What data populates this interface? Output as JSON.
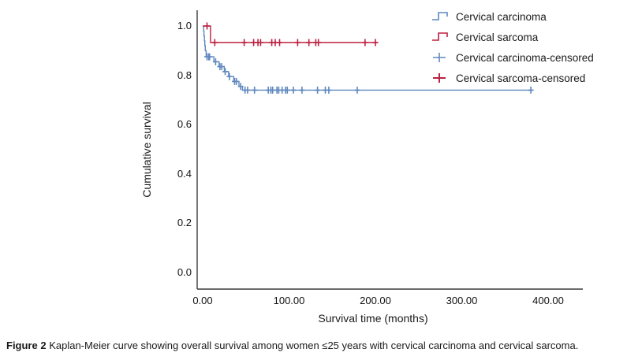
{
  "colors": {
    "carcinoma_blue": "#5f88bf",
    "sarcoma_red": "#bb2140",
    "axis": "#3a3a3a",
    "text": "#1a1a1a"
  },
  "legend": {
    "items": [
      {
        "label": "Cervical carcinoma",
        "marker": "step",
        "color_key": "carcinoma_blue"
      },
      {
        "label": "Cervical sarcoma",
        "marker": "step",
        "color_key": "sarcoma_red"
      },
      {
        "label": "Cervical carcinoma-censored",
        "marker": "plus",
        "color_key": "carcinoma_blue"
      },
      {
        "label": "Cervical sarcoma-censored",
        "marker": "plus",
        "color_key": "sarcoma_red"
      }
    ]
  },
  "caption": {
    "label": "Figure 2",
    "text": "Kaplan-Meier curve showing overall survival among women ≤25 years with cervical carcinoma and cervical sarcoma."
  },
  "chart_data": {
    "type": "line",
    "subtype": "kaplan-meier-step",
    "title": "",
    "xlabel": "Survival time (months)",
    "ylabel": "Cumulative survival",
    "xlim": [
      0,
      400
    ],
    "ylim": [
      0.0,
      1.0
    ],
    "grid": false,
    "legend_position": "top-right",
    "x_ticks": {
      "values": [
        0,
        100,
        200,
        300,
        400
      ],
      "labels": [
        "0.00",
        "100.00",
        "200.00",
        "300.00",
        "400.00"
      ]
    },
    "y_ticks": {
      "values": [
        0.0,
        0.2,
        0.4,
        0.6,
        0.8,
        1.0
      ],
      "labels": [
        "0.0",
        "0.2",
        "0.4",
        "0.6",
        "0.8",
        "1.0"
      ]
    },
    "series": [
      {
        "name": "Cervical carcinoma",
        "color_key": "carcinoma_blue",
        "end_time": 383,
        "steps": [
          [
            0,
            1.0
          ],
          [
            1,
            0.98
          ],
          [
            1.5,
            0.96
          ],
          [
            2,
            0.94
          ],
          [
            2.5,
            0.92
          ],
          [
            3,
            0.9
          ],
          [
            4,
            0.875
          ],
          [
            13,
            0.855
          ],
          [
            19,
            0.835
          ],
          [
            25,
            0.815
          ],
          [
            30,
            0.795
          ],
          [
            36,
            0.775
          ],
          [
            42,
            0.755
          ],
          [
            46,
            0.74
          ]
        ],
        "censored": [
          [
            5,
            0.875
          ],
          [
            7,
            0.875
          ],
          [
            8,
            0.875
          ],
          [
            15,
            0.855
          ],
          [
            20,
            0.835
          ],
          [
            22,
            0.835
          ],
          [
            26,
            0.815
          ],
          [
            31,
            0.795
          ],
          [
            37,
            0.775
          ],
          [
            39,
            0.775
          ],
          [
            44,
            0.755
          ],
          [
            49,
            0.74
          ],
          [
            52,
            0.74
          ],
          [
            60,
            0.74
          ],
          [
            76,
            0.74
          ],
          [
            79,
            0.74
          ],
          [
            81,
            0.74
          ],
          [
            86,
            0.74
          ],
          [
            88,
            0.74
          ],
          [
            92,
            0.74
          ],
          [
            96,
            0.74
          ],
          [
            98,
            0.74
          ],
          [
            105,
            0.74
          ],
          [
            115,
            0.74
          ],
          [
            133,
            0.74
          ],
          [
            142,
            0.74
          ],
          [
            146,
            0.74
          ],
          [
            179,
            0.74
          ],
          [
            380,
            0.74
          ]
        ]
      },
      {
        "name": "Cervical sarcoma",
        "color_key": "sarcoma_red",
        "end_time": 203,
        "steps": [
          [
            0,
            1.0
          ],
          [
            9,
            0.933
          ]
        ],
        "censored": [
          [
            5,
            1.0
          ],
          [
            14,
            0.933
          ],
          [
            48,
            0.933
          ],
          [
            59,
            0.933
          ],
          [
            64,
            0.933
          ],
          [
            67,
            0.933
          ],
          [
            80,
            0.933
          ],
          [
            84,
            0.933
          ],
          [
            89,
            0.933
          ],
          [
            110,
            0.933
          ],
          [
            123,
            0.933
          ],
          [
            131,
            0.933
          ],
          [
            134,
            0.933
          ],
          [
            188,
            0.933
          ],
          [
            200,
            0.933
          ]
        ]
      }
    ]
  }
}
